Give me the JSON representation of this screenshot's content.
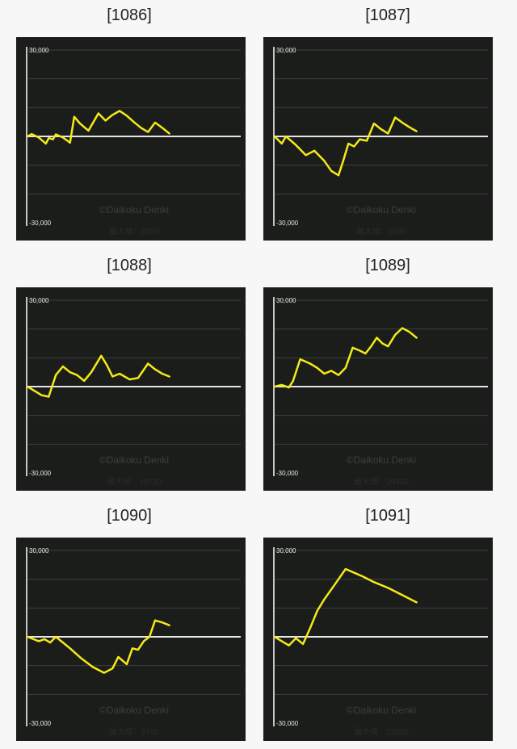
{
  "colors": {
    "page_background": "#f7f7f7",
    "panel_background": "#1b1d1b",
    "grid": "#3c3e3c",
    "axis": "#ffffff",
    "zero_line": "#e6e6e6",
    "series": "#f4ea17",
    "watermark": "#3d3f3d",
    "tick_text": "#e8e8e8",
    "max_label_text": "#2a2c2a"
  },
  "watermark": "©Daikoku Denki",
  "chart_data": [
    {
      "type": "line",
      "title": "[1086]",
      "ytick_labels": [
        "30,000",
        "-30,000"
      ],
      "ylim": [
        -30000,
        30000
      ],
      "grid": true,
      "max_label": "最大値：8850",
      "series": [
        {
          "x": [
            0,
            3,
            8,
            13,
            15,
            18,
            20,
            25,
            30,
            33,
            37,
            43,
            50,
            55,
            60,
            65,
            70,
            75,
            80,
            85,
            90,
            95,
            100
          ],
          "y": [
            0,
            800,
            -400,
            -2500,
            -600,
            -1000,
            700,
            -400,
            -2200,
            6800,
            4500,
            2000,
            8000,
            5500,
            7500,
            8850,
            7200,
            5000,
            3000,
            1500,
            4800,
            3000,
            1000
          ]
        }
      ]
    },
    {
      "type": "line",
      "title": "[1087]",
      "ytick_labels": [
        "30,000",
        "-30,000"
      ],
      "ylim": [
        -30000,
        30000
      ],
      "grid": true,
      "max_label": "最大値：6590",
      "series": [
        {
          "x": [
            0,
            5,
            8,
            15,
            22,
            28,
            35,
            40,
            45,
            48,
            52,
            56,
            60,
            65,
            70,
            75,
            80,
            85,
            90,
            95,
            100
          ],
          "y": [
            0,
            -2500,
            0,
            -3000,
            -6500,
            -5000,
            -8500,
            -12000,
            -13500,
            -9000,
            -2500,
            -3500,
            -1000,
            -1500,
            4500,
            2500,
            1000,
            6590,
            4800,
            3200,
            1800
          ]
        }
      ]
    },
    {
      "type": "line",
      "title": "[1088]",
      "ytick_labels": [
        "30,000",
        "-30,000"
      ],
      "ylim": [
        -30000,
        30000
      ],
      "grid": true,
      "max_label": "最大値：10720",
      "series": [
        {
          "x": [
            0,
            10,
            15,
            20,
            25,
            30,
            35,
            40,
            45,
            52,
            56,
            60,
            65,
            72,
            78,
            85,
            90,
            95,
            100
          ],
          "y": [
            0,
            -3000,
            -3500,
            4000,
            7000,
            5000,
            4000,
            2000,
            5000,
            10720,
            7500,
            3500,
            4500,
            2500,
            3000,
            8000,
            6000,
            4500,
            3500
          ]
        }
      ]
    },
    {
      "type": "line",
      "title": "[1089]",
      "ytick_labels": [
        "30,000",
        "-30,000"
      ],
      "ylim": [
        -30000,
        30000
      ],
      "grid": true,
      "max_label": "最大値：20320",
      "series": [
        {
          "x": [
            0,
            5,
            10,
            13,
            18,
            25,
            30,
            35,
            40,
            45,
            50,
            55,
            60,
            64,
            68,
            72,
            76,
            80,
            85,
            90,
            95,
            100
          ],
          "y": [
            0,
            600,
            -300,
            2000,
            9500,
            8000,
            6500,
            4500,
            5500,
            4000,
            6500,
            13500,
            12500,
            11500,
            14000,
            17000,
            15000,
            14000,
            18000,
            20320,
            19000,
            17000
          ]
        }
      ]
    },
    {
      "type": "line",
      "title": "[1090]",
      "ytick_labels": [
        "30,000",
        "-30,000"
      ],
      "ylim": [
        -30000,
        30000
      ],
      "grid": true,
      "max_label": "最大値：5700",
      "series": [
        {
          "x": [
            0,
            8,
            12,
            16,
            20,
            25,
            30,
            38,
            46,
            54,
            60,
            64,
            70,
            74,
            78,
            82,
            86,
            90,
            95,
            100
          ],
          "y": [
            0,
            -1500,
            -800,
            -2000,
            0,
            -2000,
            -4000,
            -7500,
            -10500,
            -12500,
            -11000,
            -7000,
            -9500,
            -4000,
            -4500,
            -1500,
            0,
            5700,
            5000,
            4000
          ]
        }
      ]
    },
    {
      "type": "line",
      "title": "[1091]",
      "ytick_labels": [
        "30,000",
        "-30,000"
      ],
      "ylim": [
        -30000,
        30000
      ],
      "grid": true,
      "max_label": "最大値：23550",
      "series": [
        {
          "x": [
            0,
            5,
            10,
            15,
            20,
            25,
            30,
            35,
            40,
            45,
            50,
            55,
            62,
            70,
            80,
            90,
            100
          ],
          "y": [
            0,
            -1500,
            -3000,
            -500,
            -2500,
            3000,
            9000,
            13000,
            16500,
            20000,
            23550,
            22500,
            21000,
            19000,
            17000,
            14500,
            12000
          ]
        }
      ]
    }
  ]
}
